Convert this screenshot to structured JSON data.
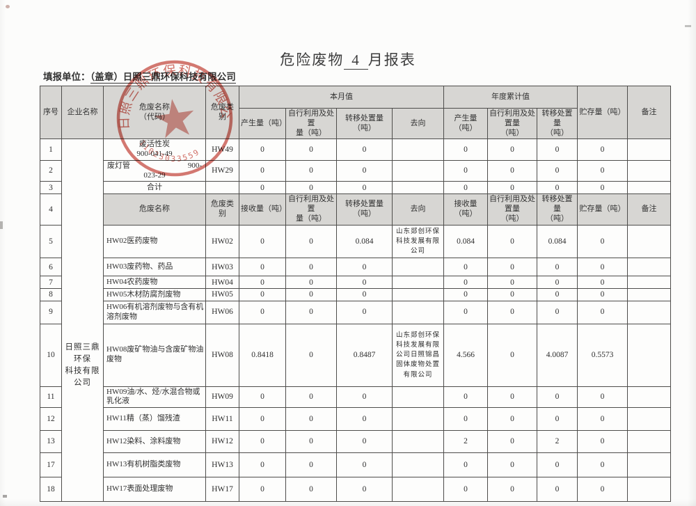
{
  "page": {
    "title_prefix": "危险废物",
    "title_month": "4",
    "title_suffix": "月报表",
    "form_unit_label": "填报单位：",
    "form_unit_value": "（盖章）日照三鼎环保科技有限公司"
  },
  "stamp": {
    "company": "日照三鼎环保科技有限公司",
    "serial": "11023033559",
    "color": "#c13a2e"
  },
  "table": {
    "headers": {
      "seq": "序号",
      "company": "企业名称",
      "waste_name_code": "危废名称\n（代码）",
      "waste_cat": "危废类别",
      "month_group": "本月值",
      "year_group": "年度累计值",
      "m_produce": "产生量（吨）",
      "m_self_use": "自行利用及处置\n量（吨）",
      "m_transfer": "转移处置量（吨）",
      "direction": "去向",
      "y_produce": "产生量（吨）",
      "y_self_use": "自行利用及处置量\n（吨）",
      "y_transfer": "转移处置量\n（吨）",
      "storage": "贮存量（吨）",
      "note": "备注"
    },
    "headers2": {
      "seq": "4",
      "waste_name": "危废名称",
      "waste_cat": "危废类别",
      "receive": "接收量（吨）",
      "self_use": "自行利用及处置\n量（吨）",
      "transfer": "转移处置量（吨）",
      "direction": "去向",
      "y_receive": "接收量（吨）",
      "y_self_use": "自行利用及处置量\n（吨）",
      "y_transfer": "转移处置量\n（吨）",
      "storage": "贮存量（吨）",
      "note": "备注"
    },
    "company_name": "日照三鼎环保\n科技有限公司",
    "top_rows": [
      {
        "no": "1",
        "name": "废活性炭",
        "name_r": "",
        "code": "900-041-49",
        "cat": "HW49",
        "m1": "0",
        "m2": "0",
        "m3": "0",
        "dir": "",
        "y1": "0",
        "y2": "0",
        "y3": "0",
        "store": "0",
        "note": ""
      },
      {
        "no": "2",
        "name": "废灯管",
        "name_r": "900-",
        "code": "023-29",
        "cat": "HW29",
        "m1": "0",
        "m2": "0",
        "m3": "0",
        "dir": "",
        "y1": "0",
        "y2": "0",
        "y3": "0",
        "store": "0",
        "note": ""
      },
      {
        "no": "3",
        "name": "合计",
        "name_r": "",
        "code": "",
        "cat": "",
        "m1": "0",
        "m2": "0",
        "m3": "0",
        "dir": "",
        "y1": "0",
        "y2": "0",
        "y3": "0",
        "store": "0",
        "note": ""
      }
    ],
    "rows": [
      {
        "no": "5",
        "name": "HW02医药废物",
        "cat": "HW02",
        "m1": "0",
        "m2": "0",
        "m3": "0.084",
        "dir": "山东郯创环保科技发展有限公司",
        "y1": "0.084",
        "y2": "0",
        "y3": "0.084",
        "store": "0",
        "note": ""
      },
      {
        "no": "6",
        "name": "HW03废药物、药品",
        "cat": "HW03",
        "m1": "0",
        "m2": "0",
        "m3": "0",
        "dir": "",
        "y1": "0",
        "y2": "0",
        "y3": "0",
        "store": "0",
        "note": ""
      },
      {
        "no": "7",
        "name": "HW04农药废物",
        "cat": "HW04",
        "m1": "0",
        "m2": "0",
        "m3": "0",
        "dir": "",
        "y1": "0",
        "y2": "0",
        "y3": "0",
        "store": "0",
        "note": ""
      },
      {
        "no": "8",
        "name": "HW05木材防腐剂废物",
        "cat": "HW05",
        "m1": "0",
        "m2": "0",
        "m3": "0",
        "dir": "",
        "y1": "0",
        "y2": "0",
        "y3": "0",
        "store": "0",
        "note": ""
      },
      {
        "no": "9",
        "name": "HW06有机溶剂废物与含有机溶剂废物",
        "cat": "HW06",
        "m1": "0",
        "m2": "0",
        "m3": "0",
        "dir": "",
        "y1": "0",
        "y2": "0",
        "y3": "0",
        "store": "0",
        "note": ""
      },
      {
        "no": "10",
        "name": "HW08废矿物油与含废矿物油废物",
        "cat": "HW08",
        "m1": "0.8418",
        "m2": "0",
        "m3": "0.8487",
        "dir": "山东郯创环保科技发展有限公司日照锦昌固体废物处置有限公司",
        "y1": "4.566",
        "y2": "0",
        "y3": "4.0087",
        "store": "0.5573",
        "note": ""
      },
      {
        "no": "11",
        "name": "HW09油/水、烃/水混合物或乳化液",
        "cat": "HW09",
        "m1": "0",
        "m2": "0",
        "m3": "0",
        "dir": "",
        "y1": "0",
        "y2": "0",
        "y3": "0",
        "store": "0",
        "note": ""
      },
      {
        "no": "12",
        "name": "HW11精（蒸）馏残渣",
        "cat": "HW11",
        "m1": "0",
        "m2": "0",
        "m3": "0",
        "dir": "",
        "y1": "0",
        "y2": "0",
        "y3": "0",
        "store": "0",
        "note": ""
      },
      {
        "no": "13",
        "name": "HW12染料、涂料废物",
        "cat": "HW12",
        "m1": "0",
        "m2": "0",
        "m3": "0",
        "dir": "",
        "y1": "2",
        "y2": "0",
        "y3": "2",
        "store": "0",
        "note": ""
      },
      {
        "no": "17",
        "name": "HW13有机树脂类废物",
        "cat": "HW13",
        "m1": "0",
        "m2": "0",
        "m3": "0",
        "dir": "",
        "y1": "0",
        "y2": "0",
        "y3": "0",
        "store": "0",
        "note": ""
      },
      {
        "no": "18",
        "name": "HW17表面处理废物",
        "cat": "HW17",
        "m1": "0",
        "m2": "0",
        "m3": "0",
        "dir": "",
        "y1": "0",
        "y2": "0",
        "y3": "0",
        "store": "0",
        "note": ""
      }
    ]
  }
}
